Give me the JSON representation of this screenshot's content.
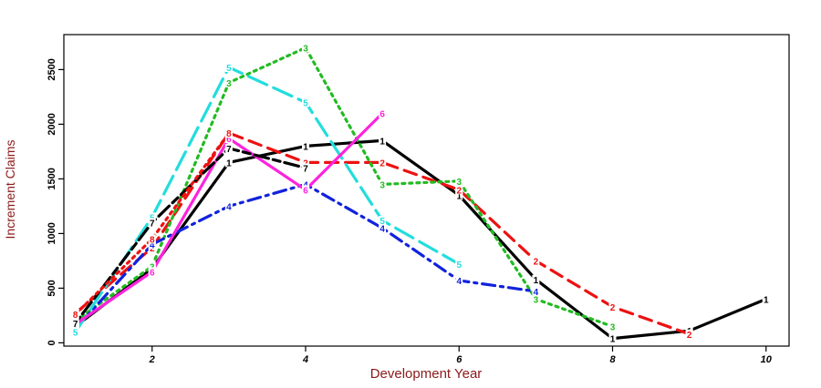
{
  "chart_data": {
    "type": "line",
    "title": "",
    "xlabel": "Development Year",
    "ylabel": "Increment Claims",
    "xlim": [
      0.85,
      10.3
    ],
    "ylim": [
      -30,
      2820
    ],
    "xticks": [
      2,
      4,
      6,
      8,
      10
    ],
    "yticks": [
      0,
      500,
      1000,
      1500,
      2000,
      2500
    ],
    "grid": false,
    "legend": "none",
    "series": [
      {
        "name": "1",
        "color": "#000000",
        "dash": "solid",
        "x": [
          1,
          2,
          3,
          4,
          5,
          6,
          7,
          8,
          9,
          10
        ],
        "y": [
          150,
          680,
          1650,
          1800,
          1850,
          1350,
          580,
          40,
          110,
          400
        ]
      },
      {
        "name": "2",
        "color": "#ee1111",
        "dash": "dashed",
        "x": [
          1,
          2,
          3,
          4,
          5,
          6,
          7,
          8,
          9
        ],
        "y": [
          270,
          870,
          1920,
          1650,
          1650,
          1400,
          750,
          330,
          80
        ]
      },
      {
        "name": "3",
        "color": "#22bb22",
        "dash": "dotted",
        "x": [
          1,
          2,
          3,
          4,
          5,
          6,
          7,
          8
        ],
        "y": [
          200,
          700,
          2380,
          2700,
          1450,
          1480,
          400,
          150
        ]
      },
      {
        "name": "4",
        "color": "#1122dd",
        "dash": "dotdash",
        "x": [
          1,
          2,
          3,
          4,
          5,
          6,
          7
        ],
        "y": [
          130,
          900,
          1250,
          1450,
          1050,
          570,
          470
        ]
      },
      {
        "name": "5",
        "color": "#22dddd",
        "dash": "longdash",
        "x": [
          1,
          2,
          3,
          4,
          5,
          6
        ],
        "y": [
          100,
          1150,
          2520,
          2200,
          1120,
          720
        ]
      },
      {
        "name": "6",
        "color": "#ff22dd",
        "dash": "solid",
        "x": [
          1,
          2,
          3,
          4,
          5
        ],
        "y": [
          170,
          650,
          1870,
          1400,
          2100
        ]
      },
      {
        "name": "7",
        "color": "#000000",
        "dash": "twodash",
        "x": [
          1,
          2,
          3,
          4
        ],
        "y": [
          180,
          1100,
          1780,
          1600
        ]
      },
      {
        "name": "8",
        "color": "#ee1111",
        "dash": "dotted",
        "x": [
          1,
          2,
          3
        ],
        "y": [
          260,
          950,
          1920
        ]
      }
    ]
  }
}
